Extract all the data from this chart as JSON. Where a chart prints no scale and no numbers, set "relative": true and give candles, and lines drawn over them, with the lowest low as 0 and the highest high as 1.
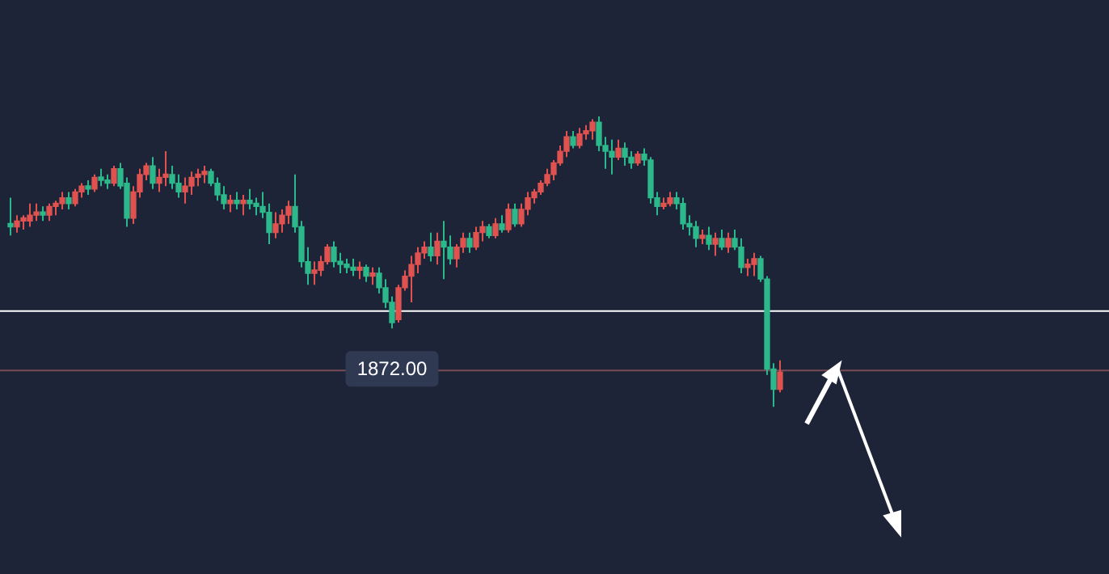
{
  "chart_data": {
    "type": "candlestick",
    "relative": true,
    "grid": false,
    "legend": false,
    "categories": [
      null,
      null,
      null,
      null,
      null,
      null,
      null,
      null,
      null,
      null,
      null,
      null,
      null,
      null,
      null,
      null,
      null,
      null,
      null,
      null,
      null,
      null,
      null,
      null,
      null,
      null,
      null,
      null,
      null,
      null,
      null,
      null,
      null,
      null,
      null,
      null,
      null,
      null,
      null,
      null,
      null,
      null,
      null,
      null,
      null,
      null,
      null,
      null,
      null,
      null,
      null,
      null,
      null,
      null,
      null,
      null,
      null,
      null,
      null,
      null,
      null,
      null,
      null,
      null,
      null,
      null,
      null,
      null,
      null,
      null,
      null,
      null,
      null,
      null,
      null,
      null,
      null,
      null,
      null,
      null,
      null,
      null,
      null,
      null,
      null,
      null,
      null,
      null,
      null,
      null,
      null,
      null,
      null,
      null,
      null,
      null,
      null,
      null,
      null,
      null,
      null,
      null,
      null,
      null,
      null,
      null,
      null,
      null,
      null,
      null,
      null,
      null,
      null,
      null,
      null,
      null,
      null,
      null,
      null,
      null
    ],
    "ohlc": [
      [
        0.63,
        0.72,
        0.59,
        0.62
      ],
      [
        0.62,
        0.66,
        0.6,
        0.64
      ],
      [
        0.64,
        0.66,
        0.61,
        0.65
      ],
      [
        0.64,
        0.7,
        0.62,
        0.66
      ],
      [
        0.66,
        0.7,
        0.64,
        0.67
      ],
      [
        0.67,
        0.69,
        0.64,
        0.66
      ],
      [
        0.66,
        0.7,
        0.64,
        0.69
      ],
      [
        0.69,
        0.71,
        0.66,
        0.7
      ],
      [
        0.7,
        0.74,
        0.68,
        0.72
      ],
      [
        0.72,
        0.74,
        0.68,
        0.7
      ],
      [
        0.7,
        0.75,
        0.69,
        0.74
      ],
      [
        0.74,
        0.77,
        0.72,
        0.76
      ],
      [
        0.76,
        0.78,
        0.73,
        0.75
      ],
      [
        0.75,
        0.8,
        0.74,
        0.79
      ],
      [
        0.79,
        0.82,
        0.76,
        0.78
      ],
      [
        0.78,
        0.8,
        0.75,
        0.77
      ],
      [
        0.77,
        0.83,
        0.76,
        0.82
      ],
      [
        0.82,
        0.84,
        0.75,
        0.76
      ],
      [
        0.77,
        0.79,
        0.62,
        0.65
      ],
      [
        0.65,
        0.76,
        0.63,
        0.74
      ],
      [
        0.74,
        0.82,
        0.72,
        0.8
      ],
      [
        0.8,
        0.84,
        0.78,
        0.83
      ],
      [
        0.83,
        0.86,
        0.75,
        0.77
      ],
      [
        0.77,
        0.82,
        0.74,
        0.79
      ],
      [
        0.79,
        0.88,
        0.76,
        0.8
      ],
      [
        0.8,
        0.83,
        0.75,
        0.77
      ],
      [
        0.77,
        0.8,
        0.72,
        0.74
      ],
      [
        0.74,
        0.79,
        0.7,
        0.76
      ],
      [
        0.76,
        0.81,
        0.73,
        0.79
      ],
      [
        0.79,
        0.82,
        0.76,
        0.8
      ],
      [
        0.8,
        0.83,
        0.77,
        0.81
      ],
      [
        0.81,
        0.82,
        0.76,
        0.77
      ],
      [
        0.77,
        0.79,
        0.71,
        0.73
      ],
      [
        0.73,
        0.76,
        0.68,
        0.7
      ],
      [
        0.7,
        0.73,
        0.67,
        0.71
      ],
      [
        0.71,
        0.74,
        0.68,
        0.7
      ],
      [
        0.7,
        0.73,
        0.66,
        0.71
      ],
      [
        0.71,
        0.75,
        0.68,
        0.7
      ],
      [
        0.7,
        0.72,
        0.66,
        0.69
      ],
      [
        0.69,
        0.74,
        0.65,
        0.67
      ],
      [
        0.67,
        0.7,
        0.56,
        0.6
      ],
      [
        0.6,
        0.67,
        0.58,
        0.63
      ],
      [
        0.63,
        0.68,
        0.6,
        0.66
      ],
      [
        0.66,
        0.71,
        0.63,
        0.69
      ],
      [
        0.69,
        0.8,
        0.6,
        0.62
      ],
      [
        0.62,
        0.64,
        0.48,
        0.5
      ],
      [
        0.5,
        0.55,
        0.42,
        0.46
      ],
      [
        0.46,
        0.5,
        0.42,
        0.47
      ],
      [
        0.47,
        0.52,
        0.45,
        0.5
      ],
      [
        0.5,
        0.56,
        0.49,
        0.55
      ],
      [
        0.55,
        0.57,
        0.48,
        0.5
      ],
      [
        0.5,
        0.53,
        0.46,
        0.49
      ],
      [
        0.49,
        0.51,
        0.46,
        0.48
      ],
      [
        0.48,
        0.51,
        0.45,
        0.47
      ],
      [
        0.47,
        0.5,
        0.44,
        0.48
      ],
      [
        0.48,
        0.49,
        0.43,
        0.45
      ],
      [
        0.45,
        0.48,
        0.42,
        0.46
      ],
      [
        0.46,
        0.48,
        0.39,
        0.41
      ],
      [
        0.41,
        0.44,
        0.34,
        0.36
      ],
      [
        0.36,
        0.38,
        0.27,
        0.29
      ],
      [
        0.3,
        0.42,
        0.29,
        0.41
      ],
      [
        0.41,
        0.47,
        0.4,
        0.45
      ],
      [
        0.45,
        0.52,
        0.36,
        0.49
      ],
      [
        0.49,
        0.55,
        0.46,
        0.53
      ],
      [
        0.53,
        0.57,
        0.51,
        0.55
      ],
      [
        0.55,
        0.6,
        0.5,
        0.52
      ],
      [
        0.52,
        0.6,
        0.49,
        0.57
      ],
      [
        0.57,
        0.64,
        0.44,
        0.55
      ],
      [
        0.55,
        0.59,
        0.49,
        0.51
      ],
      [
        0.51,
        0.56,
        0.48,
        0.55
      ],
      [
        0.55,
        0.6,
        0.53,
        0.58
      ],
      [
        0.58,
        0.6,
        0.53,
        0.55
      ],
      [
        0.55,
        0.62,
        0.54,
        0.6
      ],
      [
        0.6,
        0.64,
        0.57,
        0.62
      ],
      [
        0.62,
        0.63,
        0.58,
        0.59
      ],
      [
        0.59,
        0.65,
        0.58,
        0.63
      ],
      [
        0.63,
        0.66,
        0.6,
        0.61
      ],
      [
        0.61,
        0.7,
        0.6,
        0.68
      ],
      [
        0.68,
        0.7,
        0.62,
        0.63
      ],
      [
        0.63,
        0.7,
        0.62,
        0.68
      ],
      [
        0.68,
        0.74,
        0.66,
        0.72
      ],
      [
        0.72,
        0.75,
        0.7,
        0.74
      ],
      [
        0.74,
        0.78,
        0.73,
        0.77
      ],
      [
        0.77,
        0.82,
        0.76,
        0.8
      ],
      [
        0.8,
        0.85,
        0.78,
        0.84
      ],
      [
        0.84,
        0.9,
        0.83,
        0.88
      ],
      [
        0.88,
        0.95,
        0.86,
        0.93
      ],
      [
        0.93,
        0.95,
        0.89,
        0.9
      ],
      [
        0.9,
        0.96,
        0.89,
        0.94
      ],
      [
        0.94,
        0.97,
        0.92,
        0.95
      ],
      [
        0.95,
        0.99,
        0.92,
        0.98
      ],
      [
        0.98,
        1.0,
        0.88,
        0.9
      ],
      [
        0.9,
        0.93,
        0.82,
        0.88
      ],
      [
        0.88,
        0.92,
        0.8,
        0.86
      ],
      [
        0.86,
        0.92,
        0.85,
        0.89
      ],
      [
        0.89,
        0.91,
        0.83,
        0.86
      ],
      [
        0.86,
        0.88,
        0.82,
        0.84
      ],
      [
        0.84,
        0.88,
        0.83,
        0.87
      ],
      [
        0.87,
        0.89,
        0.83,
        0.85
      ],
      [
        0.85,
        0.86,
        0.7,
        0.72
      ],
      [
        0.72,
        0.74,
        0.66,
        0.69
      ],
      [
        0.69,
        0.72,
        0.68,
        0.7
      ],
      [
        0.7,
        0.74,
        0.69,
        0.72
      ],
      [
        0.72,
        0.74,
        0.68,
        0.7
      ],
      [
        0.7,
        0.72,
        0.61,
        0.63
      ],
      [
        0.63,
        0.66,
        0.59,
        0.62
      ],
      [
        0.62,
        0.64,
        0.55,
        0.58
      ],
      [
        0.58,
        0.61,
        0.56,
        0.59
      ],
      [
        0.59,
        0.62,
        0.54,
        0.56
      ],
      [
        0.56,
        0.6,
        0.52,
        0.58
      ],
      [
        0.58,
        0.61,
        0.54,
        0.55
      ],
      [
        0.55,
        0.6,
        0.53,
        0.58
      ],
      [
        0.58,
        0.61,
        0.54,
        0.55
      ],
      [
        0.55,
        0.58,
        0.46,
        0.48
      ],
      [
        0.48,
        0.51,
        0.45,
        0.49
      ],
      [
        0.49,
        0.53,
        0.45,
        0.51
      ],
      [
        0.51,
        0.52,
        0.43,
        0.44
      ],
      [
        0.44,
        0.45,
        0.11,
        0.13
      ],
      [
        0.13,
        0.15,
        0.0,
        0.06
      ],
      [
        0.06,
        0.16,
        0.05,
        0.12
      ]
    ],
    "colors": [
      "#2bb88a",
      "#e0524f",
      "#e0524f",
      "#e0524f",
      "#e0524f",
      "#2bb88a",
      "#e0524f",
      "#e0524f",
      "#e0524f",
      "#2bb88a",
      "#e0524f",
      "#e0524f",
      "#2bb88a",
      "#e0524f",
      "#2bb88a",
      "#2bb88a",
      "#e0524f",
      "#2bb88a",
      "#2bb88a",
      "#e0524f",
      "#e0524f",
      "#e0524f",
      "#2bb88a",
      "#e0524f",
      "#e0524f",
      "#2bb88a",
      "#2bb88a",
      "#e0524f",
      "#e0524f",
      "#e0524f",
      "#e0524f",
      "#2bb88a",
      "#2bb88a",
      "#2bb88a",
      "#e0524f",
      "#2bb88a",
      "#e0524f",
      "#2bb88a",
      "#2bb88a",
      "#2bb88a",
      "#2bb88a",
      "#e0524f",
      "#e0524f",
      "#e0524f",
      "#2bb88a",
      "#2bb88a",
      "#2bb88a",
      "#e0524f",
      "#e0524f",
      "#e0524f",
      "#2bb88a",
      "#2bb88a",
      "#2bb88a",
      "#2bb88a",
      "#e0524f",
      "#2bb88a",
      "#e0524f",
      "#2bb88a",
      "#2bb88a",
      "#2bb88a",
      "#e0524f",
      "#e0524f",
      "#e0524f",
      "#e0524f",
      "#e0524f",
      "#2bb88a",
      "#e0524f",
      "#2bb88a",
      "#2bb88a",
      "#e0524f",
      "#e0524f",
      "#2bb88a",
      "#e0524f",
      "#e0524f",
      "#2bb88a",
      "#e0524f",
      "#2bb88a",
      "#e0524f",
      "#2bb88a",
      "#e0524f",
      "#e0524f",
      "#e0524f",
      "#e0524f",
      "#e0524f",
      "#e0524f",
      "#e0524f",
      "#e0524f",
      "#2bb88a",
      "#e0524f",
      "#e0524f",
      "#e0524f",
      "#2bb88a",
      "#2bb88a",
      "#2bb88a",
      "#e0524f",
      "#2bb88a",
      "#2bb88a",
      "#e0524f",
      "#2bb88a",
      "#2bb88a",
      "#2bb88a",
      "#e0524f",
      "#e0524f",
      "#2bb88a",
      "#2bb88a",
      "#2bb88a",
      "#2bb88a",
      "#e0524f",
      "#2bb88a",
      "#e0524f",
      "#2bb88a",
      "#e0524f",
      "#2bb88a",
      "#2bb88a",
      "#e0524f",
      "#e0524f",
      "#2bb88a",
      "#2bb88a",
      "#2bb88a",
      "#e0524f"
    ],
    "ref_lines": [
      {
        "axis": "y",
        "value": 0.125,
        "color": "#7a4a55"
      },
      {
        "axis": "y",
        "value": 0.33,
        "color": "#ffffff"
      }
    ],
    "annotations": [
      {
        "text": "1872.00",
        "y": 0.27
      }
    ]
  }
}
